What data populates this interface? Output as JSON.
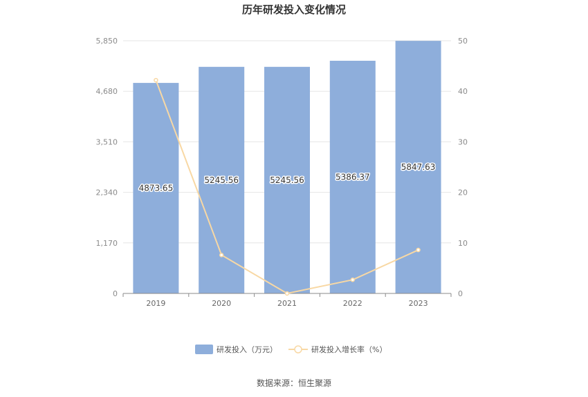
{
  "chart_data": {
    "type": "bar",
    "title": "历年研发投入变化情况",
    "categories": [
      "2019",
      "2020",
      "2021",
      "2022",
      "2023"
    ],
    "series": [
      {
        "name": "研发投入（万元）",
        "type": "bar",
        "axis": "left",
        "color": "#8eaedb",
        "values": [
          4873.65,
          5245.56,
          5245.56,
          5386.37,
          5847.63
        ],
        "labels": [
          "4873.65",
          "5245.56",
          "5245.56",
          "5386.37",
          "5847.63"
        ]
      },
      {
        "name": "研发投入增长率（%）",
        "type": "line",
        "axis": "right",
        "color": "#f8d8a4",
        "values": [
          42.2,
          7.6,
          0.0,
          2.7,
          8.6
        ]
      }
    ],
    "y_left": {
      "ylim": [
        0,
        5850
      ],
      "ticks": [
        "0",
        "1,170",
        "2,340",
        "3,510",
        "4,680",
        "5,850"
      ],
      "tick_values": [
        0,
        1170,
        2340,
        3510,
        4680,
        5850
      ]
    },
    "y_right": {
      "ylim": [
        0,
        50
      ],
      "ticks": [
        "0",
        "10",
        "20",
        "30",
        "40",
        "50"
      ],
      "tick_values": [
        0,
        10,
        20,
        30,
        40,
        50
      ]
    },
    "grid": true,
    "legend_position": "bottom"
  },
  "source": "数据来源：恒生聚源"
}
